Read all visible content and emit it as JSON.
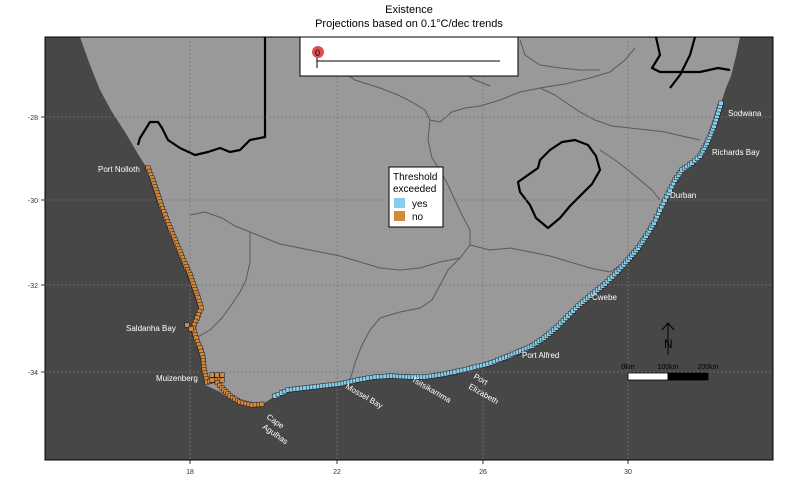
{
  "title": "Existence",
  "subtitle": "Projections based on 0.1°C/dec trends",
  "colors": {
    "ocean": "#474747",
    "land": "#999999",
    "province_border": "#5a5a5a",
    "country_border": "#000000",
    "yes": "#87ceeb",
    "no": "#d48a3c"
  },
  "axes": {
    "x_ticks": [
      "18",
      "22",
      "26",
      "30"
    ],
    "y_ticks": [
      "-28",
      "-30",
      "-32",
      "-34"
    ]
  },
  "slider": {
    "value": "0"
  },
  "legend": {
    "title_line1": "Threshold",
    "title_line2": "exceeded",
    "items": [
      {
        "label": "yes",
        "color": "#87ceeb"
      },
      {
        "label": "no",
        "color": "#d48a3c"
      }
    ]
  },
  "places": {
    "port_nolloth": "Port Nolloth",
    "saldanha_bay": "Saldanha Bay",
    "muizenberg": "Muizenberg",
    "cape_line1": "Cape",
    "cape_line2": "Agulhas",
    "mossel_bay": "Mossel Bay",
    "tsitsikamma": "Tsitsikamma",
    "pe_line1": "Port",
    "pe_line2": "Elizabeth",
    "port_alfred": "Port Alfred",
    "cwebe": "Cwebe",
    "durban": "Durban",
    "richards_bay": "Richards Bay",
    "sodwana": "Sodwana"
  },
  "north_arrow": {
    "label": "N"
  },
  "scalebar": {
    "labels": [
      "0km",
      "100km",
      "200km"
    ]
  }
}
